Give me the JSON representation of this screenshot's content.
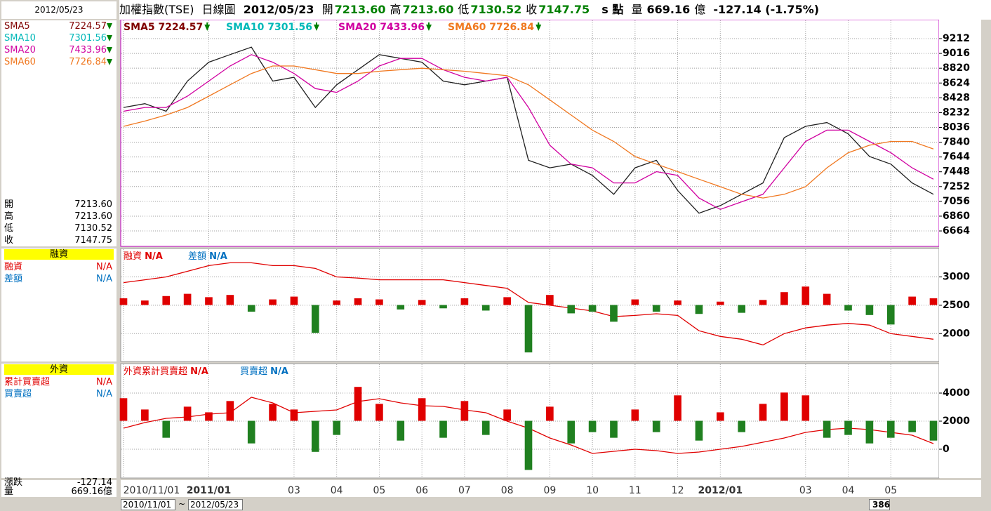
{
  "header": {
    "name": "加權指數(TSE)",
    "view": "日線圖",
    "date": "2012/05/23",
    "quote": [
      {
        "label": "開",
        "value": "7213.60"
      },
      {
        "label": "高",
        "value": "7213.60"
      },
      {
        "label": "低",
        "value": "7130.52"
      },
      {
        "label": "收",
        "value": "7147.75"
      }
    ],
    "unit": "s 點",
    "volume_label": "量",
    "volume": "669.16",
    "volume_unit": "億",
    "change": "-127.14 (-1.75%)"
  },
  "sidebar": {
    "date": "2012/05/23",
    "indicators": [
      {
        "name": "SMA5",
        "value": "7224.57",
        "color": "#800000"
      },
      {
        "name": "SMA10",
        "value": "7301.56",
        "color": "#00b8b8"
      },
      {
        "name": "SMA20",
        "value": "7433.96",
        "color": "#d000a0"
      },
      {
        "name": "SMA60",
        "value": "7726.84",
        "color": "#f07820"
      }
    ],
    "margin": {
      "title": "融資",
      "items": [
        {
          "label": "融資",
          "value": "N/A",
          "color": "#e00000"
        },
        {
          "label": "差額",
          "value": "N/A",
          "color": "#0070c0"
        }
      ]
    },
    "foreign": {
      "title": "外資",
      "items": [
        {
          "label": "累計買賣超",
          "value": "N/A",
          "color": "#e00000"
        },
        {
          "label": "買賣超",
          "value": "N/A",
          "color": "#0070c0"
        }
      ]
    },
    "summary": [
      {
        "label": "漲跌",
        "value": "-127.14"
      },
      {
        "label": "量",
        "value": "669.16億"
      }
    ]
  },
  "chart_data": [
    {
      "type": "line",
      "ylim": [
        6469,
        9454
      ],
      "yticks": [
        6664,
        6860,
        7056,
        7252,
        7448,
        7644,
        7840,
        8036,
        8232,
        8428,
        8624,
        8820,
        9016,
        9212
      ],
      "grid": true,
      "series": [
        {
          "name": "收",
          "color": "#202020",
          "values": [
            8300,
            8350,
            8250,
            8650,
            8900,
            9000,
            9100,
            8650,
            8700,
            8300,
            8600,
            8800,
            9000,
            8950,
            8900,
            8650,
            8600,
            8650,
            8700,
            7600,
            7500,
            7550,
            7400,
            7150,
            7500,
            7600,
            7200,
            6900,
            7000,
            7150,
            7300,
            7900,
            8050,
            8100,
            7950,
            7650,
            7550,
            7300,
            7150
          ]
        },
        {
          "name": "SMA20",
          "color": "#d000a0",
          "values": [
            8250,
            8300,
            8300,
            8450,
            8650,
            8850,
            9000,
            8900,
            8750,
            8550,
            8500,
            8650,
            8850,
            8950,
            8950,
            8800,
            8700,
            8650,
            8700,
            8300,
            7800,
            7550,
            7500,
            7300,
            7300,
            7450,
            7400,
            7100,
            6950,
            7050,
            7150,
            7500,
            7850,
            8000,
            8000,
            7850,
            7700,
            7500,
            7350
          ]
        },
        {
          "name": "SMA60",
          "color": "#f07820",
          "values": [
            8050,
            8120,
            8200,
            8300,
            8450,
            8600,
            8750,
            8850,
            8850,
            8800,
            8750,
            8750,
            8780,
            8800,
            8820,
            8800,
            8780,
            8750,
            8720,
            8600,
            8400,
            8200,
            8000,
            7850,
            7650,
            7550,
            7450,
            7350,
            7250,
            7150,
            7100,
            7150,
            7250,
            7500,
            7700,
            7800,
            7850,
            7850,
            7750
          ]
        }
      ]
    },
    {
      "type": "combo",
      "ylim": [
        1520,
        3490
      ],
      "yticks": [
        2000,
        2500,
        3000
      ],
      "y2lim": [
        -1000,
        1000
      ],
      "grid": true,
      "series": [
        {
          "name": "融資",
          "type": "line",
          "color": "#e00000",
          "values": [
            2900,
            2950,
            3000,
            3100,
            3200,
            3250,
            3250,
            3200,
            3200,
            3150,
            3000,
            2980,
            2950,
            2950,
            2950,
            2950,
            2900,
            2850,
            2800,
            2550,
            2500,
            2450,
            2400,
            2300,
            2320,
            2350,
            2320,
            2050,
            1950,
            1900,
            1800,
            2000,
            2100,
            2150,
            2180,
            2150,
            2000,
            1950,
            1900
          ]
        },
        {
          "name": "差額",
          "type": "bar",
          "axis": "y2",
          "color": "#0070c0",
          "up_color": "#e00000",
          "down_color": "#208020",
          "values": [
            120,
            80,
            160,
            200,
            140,
            180,
            -120,
            100,
            150,
            -500,
            80,
            120,
            100,
            -80,
            90,
            -60,
            120,
            -100,
            140,
            -850,
            180,
            -150,
            -120,
            -300,
            100,
            -120,
            80,
            -160,
            60,
            -140,
            90,
            230,
            330,
            200,
            -100,
            -180,
            -350,
            150,
            120
          ]
        }
      ]
    },
    {
      "type": "combo",
      "ylim": [
        -2000,
        6050
      ],
      "yticks": [
        0,
        2000,
        4000
      ],
      "y2lim": [
        -1000,
        1000
      ],
      "grid": true,
      "categories": [
        "2010/11/01",
        null,
        null,
        null,
        "2011/01",
        null,
        null,
        null,
        "03",
        null,
        "04",
        null,
        "05",
        null,
        "06",
        null,
        "07",
        null,
        "08",
        null,
        "09",
        null,
        "10",
        null,
        "11",
        null,
        "12",
        null,
        "2012/01",
        null,
        null,
        null,
        "03",
        null,
        "04",
        null,
        "05",
        null,
        null
      ],
      "series": [
        {
          "name": "外資累計買賣超",
          "type": "line",
          "color": "#e00000",
          "values": [
            1500,
            1900,
            2200,
            2300,
            2500,
            2600,
            3700,
            3300,
            2600,
            2700,
            2800,
            3400,
            3600,
            3300,
            3100,
            3050,
            2800,
            2600,
            2000,
            1500,
            800,
            300,
            -300,
            -150,
            0,
            -100,
            -300,
            -200,
            0,
            200,
            500,
            800,
            1200,
            1400,
            1500,
            1400,
            1200,
            1000,
            400
          ]
        },
        {
          "name": "買賣超",
          "type": "bar",
          "axis": "y2",
          "color": "#0070c0",
          "up_color": "#e00000",
          "down_color": "#208020",
          "values": [
            400,
            200,
            -300,
            250,
            150,
            350,
            -400,
            300,
            200,
            -550,
            -250,
            600,
            300,
            -350,
            400,
            -300,
            350,
            -250,
            200,
            -870,
            250,
            -400,
            -200,
            -300,
            200,
            -200,
            450,
            -350,
            150,
            -200,
            300,
            500,
            450,
            -300,
            -250,
            -400,
            -300,
            -200,
            -350
          ]
        }
      ]
    }
  ],
  "footer": {
    "start": "2010/11/01",
    "tilde": "~",
    "end": "2012/05/23",
    "count": "386"
  }
}
